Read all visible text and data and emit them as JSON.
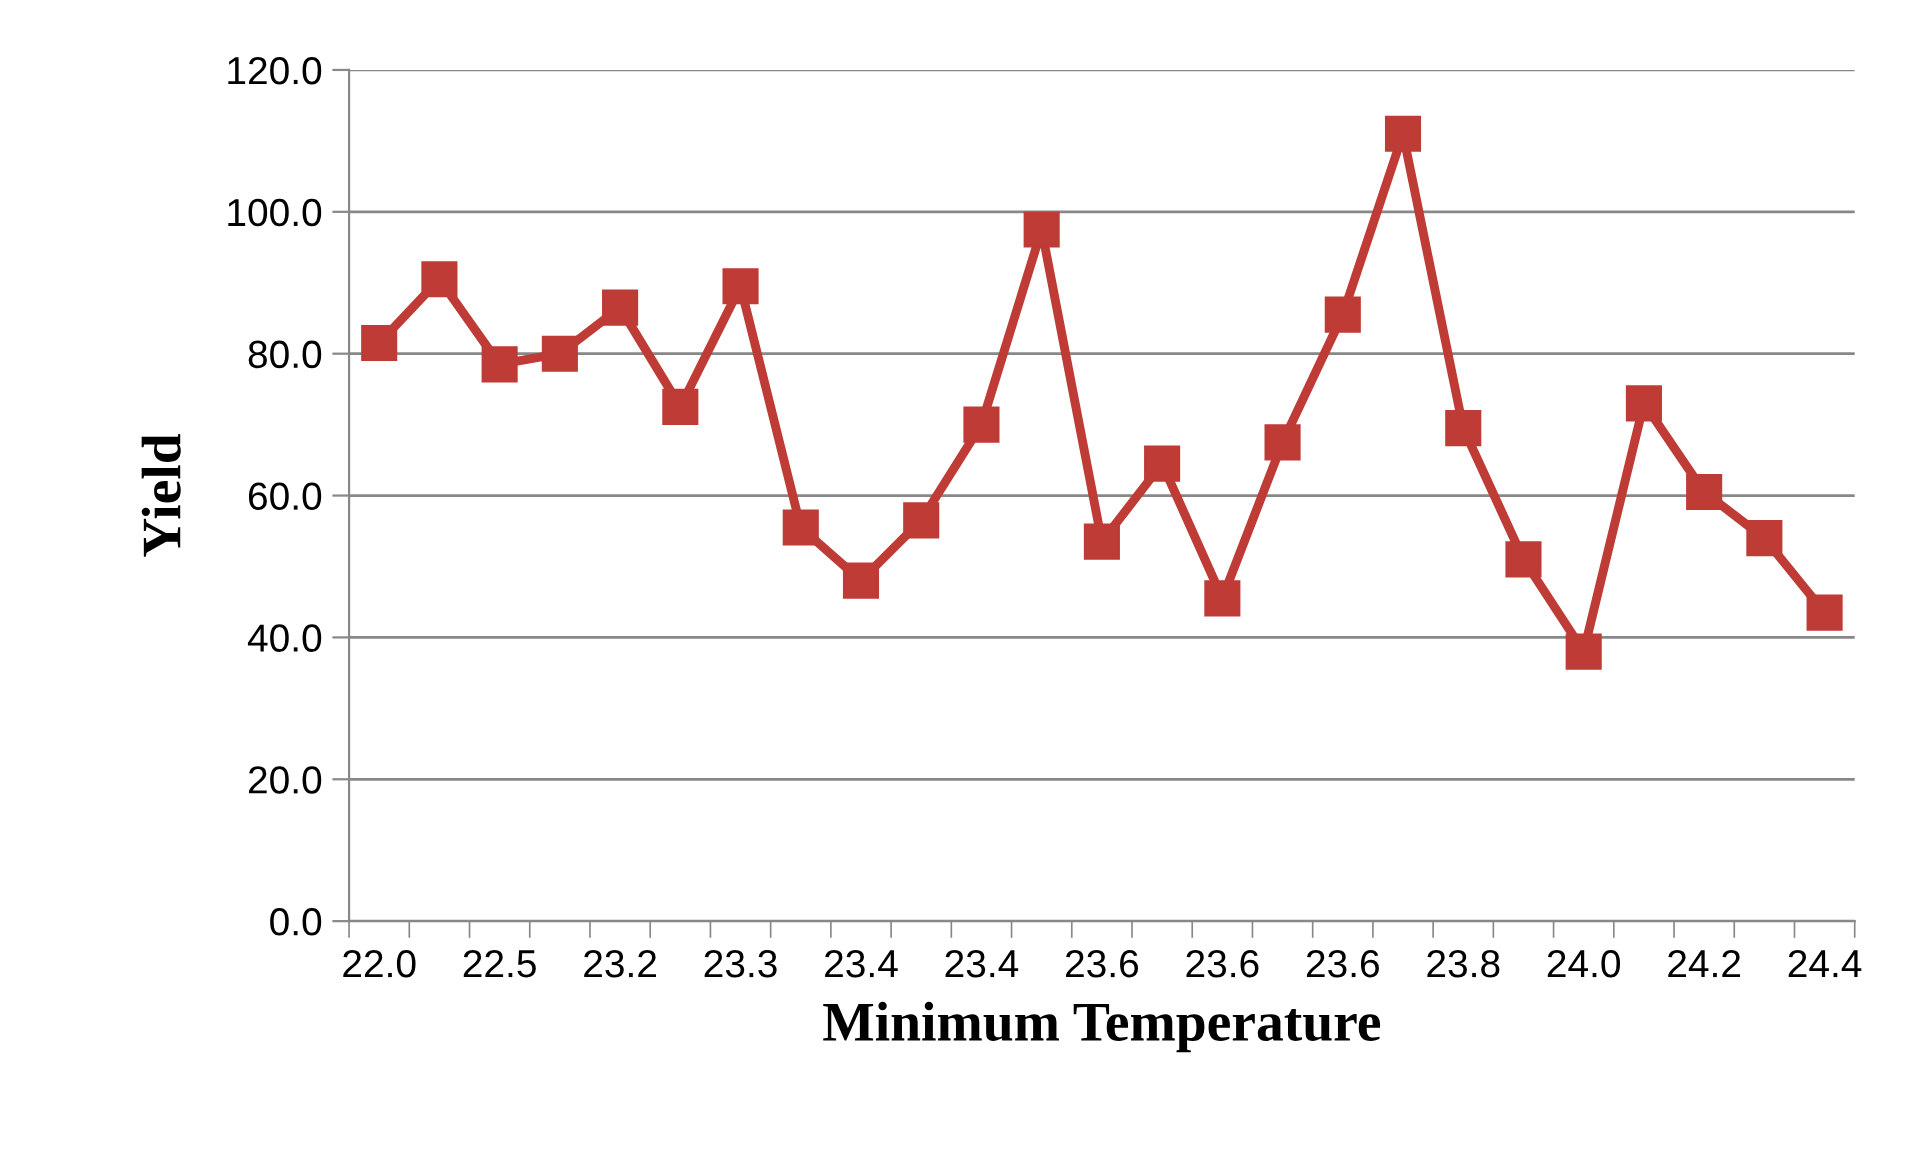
{
  "chart_data": {
    "type": "line",
    "xlabel": "Minimum Temperature",
    "ylabel": "Yield",
    "categories": [
      "22.0",
      null,
      "22.5",
      null,
      "23.2",
      null,
      "23.3",
      null,
      "23.4",
      null,
      "23.4",
      null,
      "23.6",
      null,
      "23.6",
      null,
      "23.6",
      null,
      "23.8",
      null,
      "24.0",
      null,
      "24.2",
      null,
      "24.4"
    ],
    "series": [
      {
        "color": "#be3b36",
        "values": [
          81.5,
          90.5,
          78.5,
          80,
          86.5,
          72.5,
          89.5,
          55.5,
          48,
          56.5,
          70,
          97.5,
          53.5,
          64.5,
          45.5,
          67.5,
          85.5,
          111,
          69.5,
          51,
          38,
          73,
          60.5,
          54,
          43.5
        ]
      }
    ],
    "ylim": [
      0,
      120
    ],
    "yticks": [
      {
        "value": 0,
        "label": "0.0"
      },
      {
        "value": 20,
        "label": "20.0"
      },
      {
        "value": 40,
        "label": "40.0"
      },
      {
        "value": 60,
        "label": "60.0"
      },
      {
        "value": 80,
        "label": "80.0"
      },
      {
        "value": 100,
        "label": "100.0"
      },
      {
        "value": 120,
        "label": "120.0"
      }
    ],
    "grid": "y",
    "marker": "square",
    "line_style": "solid"
  }
}
